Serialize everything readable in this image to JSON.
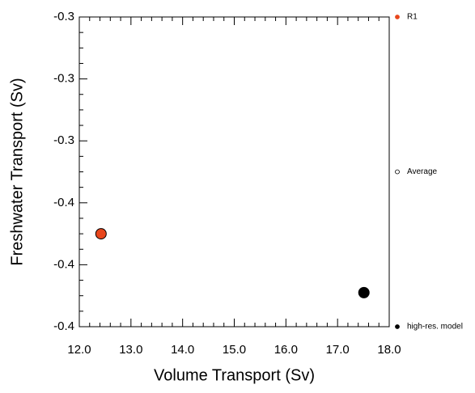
{
  "chart_data": {
    "type": "scatter",
    "xlabel": "Volume Transport (Sv)",
    "ylabel": "Freshwater Transport (Sv)",
    "xlim": [
      12.0,
      18.0
    ],
    "xticks": [
      {
        "value": 12,
        "label": "12.0"
      },
      {
        "value": 13,
        "label": "13.0"
      },
      {
        "value": 14,
        "label": "14.0"
      },
      {
        "value": 15,
        "label": "15.0"
      },
      {
        "value": 16,
        "label": "16.0"
      },
      {
        "value": 17,
        "label": "17.0"
      },
      {
        "value": 18,
        "label": "18.0"
      }
    ],
    "ylim": [
      -0.4,
      -0.3
    ],
    "yticks": [
      {
        "value": -0.3,
        "label": "-0.3"
      },
      {
        "value": -0.32,
        "label": "-0.3"
      },
      {
        "value": -0.34,
        "label": "-0.3"
      },
      {
        "value": -0.36,
        "label": "-0.4"
      },
      {
        "value": -0.38,
        "label": "-0.4"
      },
      {
        "value": -0.4,
        "label": "-0.4"
      }
    ],
    "series": [
      {
        "name": "R1",
        "color": "#e8461c",
        "x": [
          12.42
        ],
        "y": [
          -0.37
        ]
      },
      {
        "name": "Average",
        "color": "#ffffff",
        "x": [],
        "y": []
      },
      {
        "name": "high-res. model",
        "color": "#000000",
        "x": [
          17.51
        ],
        "y": [
          -0.389
        ]
      }
    ]
  }
}
